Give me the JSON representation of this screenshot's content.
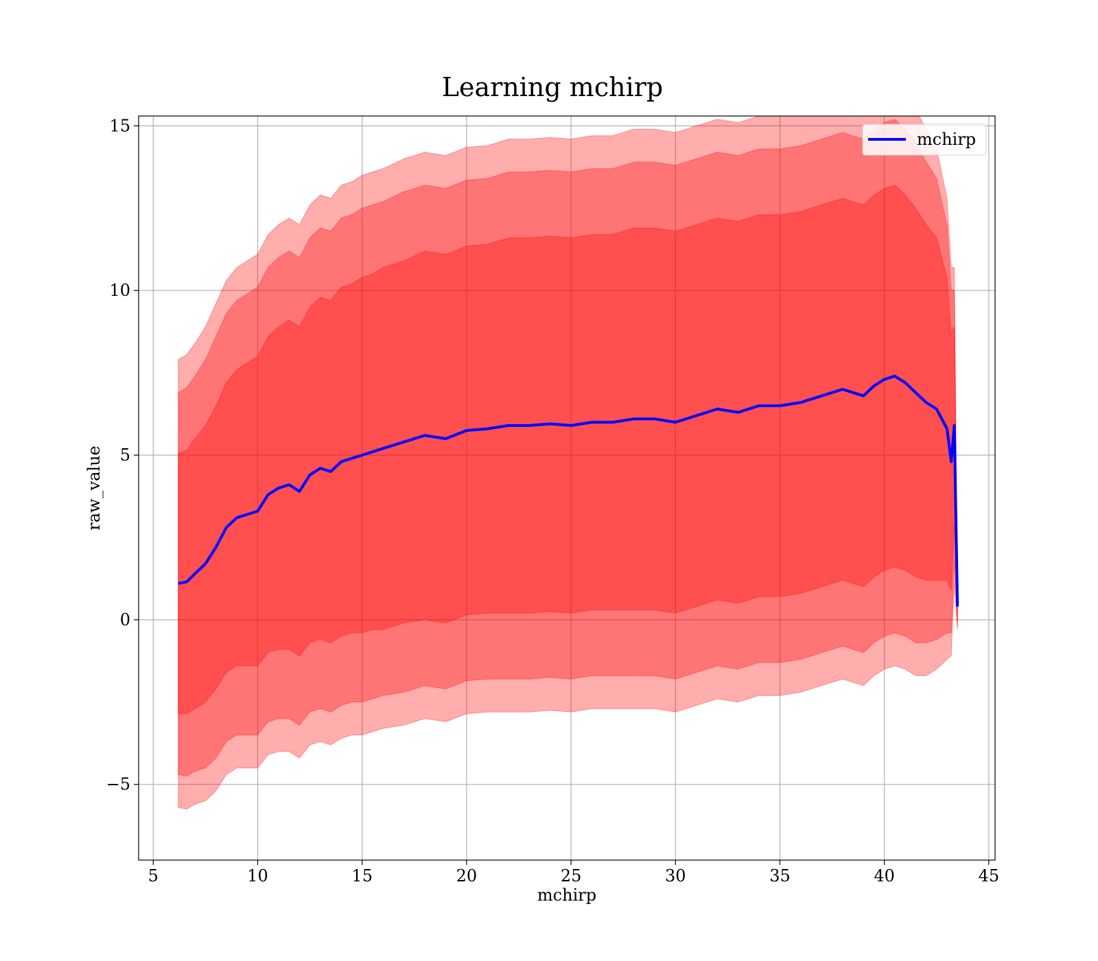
{
  "chart_data": {
    "type": "line",
    "title": "Learning mchirp",
    "xlabel": "mchirp",
    "ylabel": "raw_value",
    "xlim": [
      4.3,
      45.3
    ],
    "ylim": [
      -7.3,
      15.3
    ],
    "xticks": [
      5,
      10,
      15,
      20,
      25,
      30,
      35,
      40,
      45
    ],
    "xtick_labels": [
      "5",
      "10",
      "15",
      "20",
      "25",
      "30",
      "35",
      "40",
      "45"
    ],
    "yticks": [
      -5,
      0,
      5,
      10,
      15
    ],
    "ytick_labels": [
      "−5",
      "0",
      "5",
      "10",
      "15"
    ],
    "grid": true,
    "legend": {
      "placement": "top-right",
      "entries": [
        "mchirp"
      ]
    },
    "colors": {
      "line": "#0000ff",
      "band": "#ff0000",
      "grid": "#b0b0b0"
    },
    "series": [
      {
        "name": "mchirp",
        "x": [
          6.2,
          6.6,
          7.0,
          7.5,
          8.0,
          8.5,
          9.0,
          9.5,
          10.0,
          10.5,
          11.0,
          11.5,
          12.0,
          12.5,
          13.0,
          13.5,
          14.0,
          14.5,
          15.0,
          15.5,
          16.0,
          17.0,
          18.0,
          19.0,
          20.0,
          21.0,
          22.0,
          23.0,
          24.0,
          25.0,
          26.0,
          27.0,
          28.0,
          29.0,
          30.0,
          31.0,
          32.0,
          33.0,
          34.0,
          35.0,
          36.0,
          37.0,
          38.0,
          38.5,
          39.0,
          39.5,
          40.0,
          40.5,
          41.0,
          41.5,
          42.0,
          42.5,
          43.0,
          43.2,
          43.35,
          43.5
        ],
        "y": [
          1.1,
          1.15,
          1.4,
          1.7,
          2.2,
          2.8,
          3.1,
          3.2,
          3.3,
          3.8,
          4.0,
          4.1,
          3.9,
          4.4,
          4.6,
          4.5,
          4.8,
          4.9,
          5.0,
          5.1,
          5.2,
          5.4,
          5.6,
          5.5,
          5.75,
          5.8,
          5.9,
          5.9,
          5.95,
          5.9,
          6.0,
          6.0,
          6.1,
          6.1,
          6.0,
          6.2,
          6.4,
          6.3,
          6.5,
          6.5,
          6.6,
          6.8,
          7.0,
          6.9,
          6.8,
          7.1,
          7.3,
          7.4,
          7.2,
          6.9,
          6.6,
          6.4,
          5.8,
          4.8,
          5.9,
          0.4
        ],
        "sigma1": [
          3.95,
          4.0,
          4.1,
          4.2,
          4.3,
          4.4,
          4.5,
          4.6,
          4.7,
          4.8,
          4.9,
          5.0,
          5.0,
          5.1,
          5.2,
          5.2,
          5.3,
          5.3,
          5.4,
          5.4,
          5.5,
          5.5,
          5.6,
          5.6,
          5.6,
          5.6,
          5.7,
          5.7,
          5.7,
          5.7,
          5.7,
          5.7,
          5.8,
          5.8,
          5.8,
          5.8,
          5.8,
          5.8,
          5.8,
          5.8,
          5.8,
          5.8,
          5.8,
          5.8,
          5.8,
          5.8,
          5.8,
          5.8,
          5.7,
          5.6,
          5.4,
          5.2,
          4.6,
          3.9,
          3.0,
          0.5
        ],
        "sigma2": [
          5.8,
          5.9,
          6.0,
          6.2,
          6.4,
          6.5,
          6.6,
          6.7,
          6.8,
          6.9,
          7.0,
          7.1,
          7.1,
          7.2,
          7.3,
          7.3,
          7.4,
          7.4,
          7.5,
          7.5,
          7.5,
          7.6,
          7.6,
          7.6,
          7.6,
          7.6,
          7.7,
          7.7,
          7.7,
          7.7,
          7.7,
          7.7,
          7.8,
          7.8,
          7.8,
          7.8,
          7.8,
          7.8,
          7.8,
          7.8,
          7.8,
          7.8,
          7.8,
          7.8,
          7.8,
          7.8,
          7.8,
          7.8,
          7.7,
          7.6,
          7.3,
          7.0,
          6.2,
          5.2,
          4.1,
          0.6
        ],
        "sigma3": [
          6.8,
          6.9,
          7.0,
          7.2,
          7.4,
          7.5,
          7.6,
          7.7,
          7.8,
          7.9,
          8.0,
          8.1,
          8.1,
          8.2,
          8.3,
          8.3,
          8.4,
          8.4,
          8.5,
          8.5,
          8.5,
          8.6,
          8.6,
          8.6,
          8.6,
          8.6,
          8.7,
          8.7,
          8.7,
          8.7,
          8.7,
          8.7,
          8.8,
          8.8,
          8.8,
          8.8,
          8.8,
          8.8,
          8.8,
          8.8,
          8.8,
          8.8,
          8.8,
          8.8,
          8.8,
          8.8,
          8.8,
          8.8,
          8.7,
          8.6,
          8.3,
          7.9,
          7.0,
          5.9,
          4.8,
          0.7
        ]
      }
    ]
  }
}
